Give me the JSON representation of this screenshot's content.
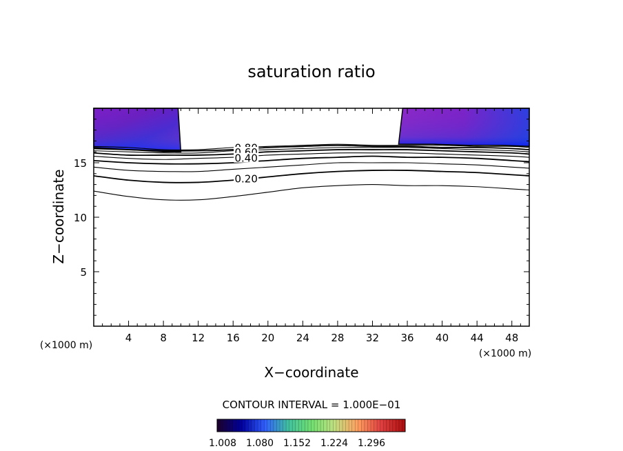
{
  "chart_data": {
    "type": "contour",
    "title": "saturation ratio",
    "xlabel": "X−coordinate",
    "ylabel": "Z−coordinate",
    "x_unit_left": "(×1000 m)",
    "x_unit_right": "(×1000 m)",
    "xlim": [
      0,
      50
    ],
    "ylim": [
      0,
      20
    ],
    "x_ticks": [
      4,
      8,
      12,
      16,
      20,
      24,
      28,
      32,
      36,
      40,
      44,
      48
    ],
    "y_ticks": [
      5,
      10,
      15
    ],
    "contour_interval_text": "CONTOUR INTERVAL = 1.000E−01",
    "contour_labels": [
      "0.80",
      "0.60",
      "0.40",
      "0.20"
    ],
    "contours": [
      {
        "level": 0.1,
        "x": [
          0,
          4,
          8,
          12,
          16,
          20,
          24,
          28,
          32,
          36,
          40,
          44,
          48,
          50
        ],
        "y": [
          12.4,
          11.9,
          11.6,
          11.6,
          11.9,
          12.3,
          12.7,
          12.9,
          13.0,
          12.9,
          12.9,
          12.8,
          12.6,
          12.5
        ]
      },
      {
        "level": 0.2,
        "x": [
          0,
          4,
          8,
          12,
          16,
          20,
          24,
          28,
          32,
          36,
          40,
          44,
          48,
          50
        ],
        "y": [
          13.8,
          13.4,
          13.2,
          13.2,
          13.4,
          13.7,
          14.0,
          14.2,
          14.3,
          14.3,
          14.2,
          14.1,
          13.9,
          13.8
        ]
      },
      {
        "level": 0.3,
        "x": [
          0,
          4,
          8,
          12,
          16,
          20,
          24,
          28,
          32,
          36,
          40,
          44,
          48,
          50
        ],
        "y": [
          14.6,
          14.3,
          14.2,
          14.2,
          14.4,
          14.6,
          14.8,
          15.0,
          15.0,
          15.0,
          14.9,
          14.8,
          14.6,
          14.5
        ]
      },
      {
        "level": 0.4,
        "x": [
          0,
          4,
          8,
          12,
          16,
          20,
          24,
          28,
          32,
          36,
          40,
          44,
          48,
          50
        ],
        "y": [
          15.2,
          15.0,
          14.9,
          14.9,
          15.0,
          15.2,
          15.4,
          15.5,
          15.6,
          15.5,
          15.5,
          15.4,
          15.2,
          15.1
        ]
      },
      {
        "level": 0.5,
        "x": [
          0,
          4,
          8,
          12,
          16,
          20,
          24,
          28,
          32,
          36,
          40,
          44,
          48,
          50
        ],
        "y": [
          15.6,
          15.4,
          15.3,
          15.4,
          15.5,
          15.7,
          15.8,
          15.9,
          15.9,
          15.9,
          15.8,
          15.7,
          15.6,
          15.5
        ]
      },
      {
        "level": 0.6,
        "x": [
          0,
          4,
          8,
          12,
          16,
          20,
          24,
          28,
          32,
          36,
          40,
          44,
          48,
          50
        ],
        "y": [
          15.9,
          15.7,
          15.7,
          15.7,
          15.8,
          16.0,
          16.1,
          16.2,
          16.2,
          16.2,
          16.1,
          16.0,
          15.9,
          15.8
        ]
      },
      {
        "level": 0.7,
        "x": [
          0,
          4,
          8,
          12,
          16,
          20,
          24,
          28,
          32,
          36,
          40,
          44,
          48,
          50
        ],
        "y": [
          16.1,
          16.0,
          15.9,
          15.9,
          16.1,
          16.2,
          16.3,
          16.4,
          16.4,
          16.4,
          16.3,
          16.2,
          16.1,
          16.0
        ]
      },
      {
        "level": 0.8,
        "x": [
          0,
          4,
          8,
          12,
          16,
          20,
          24,
          28,
          32,
          36,
          40,
          44,
          48,
          50
        ],
        "y": [
          16.3,
          16.2,
          16.1,
          16.1,
          16.2,
          16.4,
          16.5,
          16.6,
          16.5,
          16.5,
          16.4,
          16.4,
          16.3,
          16.2
        ]
      },
      {
        "level": 0.9,
        "x": [
          0,
          4,
          8,
          12,
          16,
          20,
          24,
          28,
          32,
          36,
          40,
          44,
          48,
          50
        ],
        "y": [
          16.5,
          16.4,
          16.2,
          16.2,
          16.4,
          16.5,
          16.6,
          16.7,
          16.6,
          16.6,
          16.6,
          16.5,
          16.5,
          16.4
        ]
      }
    ],
    "shaded_regions": [
      {
        "name": "left",
        "x_range": [
          0,
          10
        ],
        "bottom": [
          16.4,
          16.3,
          16.2,
          16.1,
          16.0,
          16.0
        ],
        "bottom_x": [
          0,
          2,
          4,
          6,
          8,
          10
        ]
      },
      {
        "name": "right",
        "x_range": [
          35,
          50
        ],
        "bottom": [
          16.7,
          16.7,
          16.6,
          16.6,
          16.5
        ],
        "bottom_x": [
          35,
          39,
          43,
          47,
          50
        ]
      }
    ],
    "colorbar": {
      "tick_labels": [
        "1.008",
        "1.080",
        "1.152",
        "1.224",
        "1.296"
      ],
      "colors": [
        "#1a0030",
        "#0000a0",
        "#3060ff",
        "#40c0a0",
        "#70e070",
        "#c0e080",
        "#ffa060",
        "#e04040",
        "#b01010"
      ]
    }
  }
}
